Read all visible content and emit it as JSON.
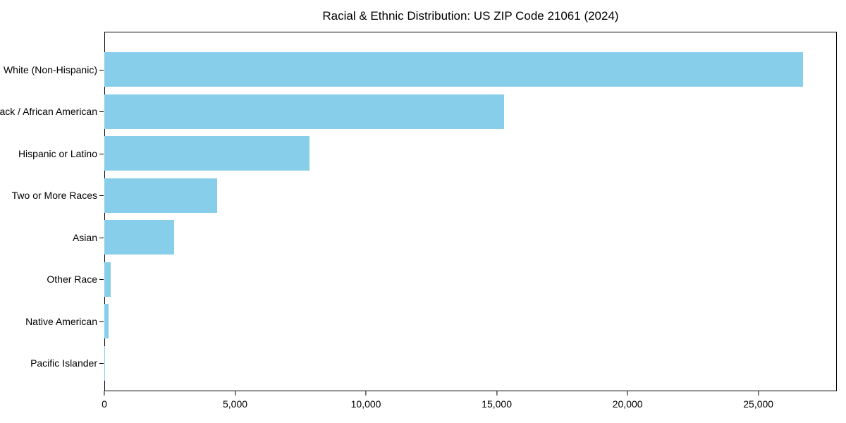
{
  "chart_data": {
    "type": "bar",
    "orientation": "horizontal",
    "title": "Racial & Ethnic Distribution: US ZIP Code 21061 (2024)",
    "categories": [
      "White (Non-Hispanic)",
      "Black / African American",
      "Hispanic or Latino",
      "Two or More Races",
      "Asian",
      "Other Race",
      "Native American",
      "Pacific Islander"
    ],
    "values": [
      26700,
      15280,
      7850,
      4300,
      2670,
      230,
      160,
      30
    ],
    "xlabel": "",
    "ylabel": "",
    "xlim": [
      0,
      28000
    ],
    "x_ticks": [
      0,
      5000,
      10000,
      15000,
      20000,
      25000
    ],
    "x_tick_labels": [
      "0",
      "5,000",
      "10,000",
      "15,000",
      "20,000",
      "25,000"
    ],
    "bar_color": "#87CEEB",
    "background_color": "#ffffff",
    "frame": "full-box",
    "grid": false,
    "legend": null
  }
}
